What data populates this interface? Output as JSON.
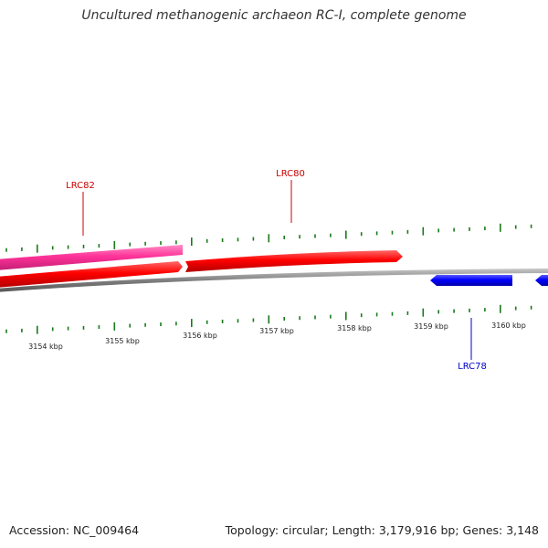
{
  "title": "Uncultured methanogenic archaeon RC-I, complete genome",
  "footer": {
    "accession": "Accession: NC_009464",
    "summary": "Topology: circular; Length: 3,179,916 bp; Genes: 3,148"
  },
  "axis": {
    "ticks": [
      "3154 kbp",
      "3155 kbp",
      "3156 kbp",
      "3157 kbp",
      "3158 kbp",
      "3159 kbp",
      "3160 kbp"
    ]
  },
  "genes": [
    {
      "name": "LRC82",
      "color": "#cc0000"
    },
    {
      "name": "LRC80",
      "color": "#cc0000"
    },
    {
      "name": "LRC78",
      "color": "#0000cc"
    }
  ],
  "colors": {
    "forward_strand": "#ff0000",
    "pink_feature": "#ff3399",
    "reverse_strand": "#0000ff",
    "backbone": "#7f7f7f",
    "ticks": "#1a7a1a"
  }
}
